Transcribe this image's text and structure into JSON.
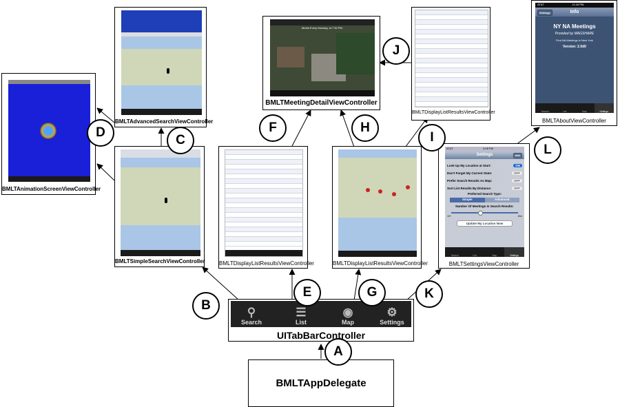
{
  "nodes": {
    "animation": "BMLTAnimationScreenViewController",
    "advanced_search": "BMLTAdvancedSearchViewController",
    "simple_search": "BMLTSimpleSearchViewController",
    "meeting_detail": "BMLTMeetingDetailViewController",
    "display_list_results_e": "BMLTDisplayListResultsViewController",
    "display_list_results_j": "BMLTDisplayListResultsViewController",
    "display_map_results": "BMLTDisplayListResultsViewController",
    "settings": "BMLTSettingsViewController",
    "about": "BMLTAboutViewController",
    "tab_bar": "UITabBarController",
    "app_delegate": "BMLTAppDelegate"
  },
  "labels": {
    "A": "A",
    "B": "B",
    "C": "C",
    "D": "D",
    "E": "E",
    "F": "F",
    "G": "G",
    "H": "H",
    "I": "I",
    "J": "J",
    "K": "K",
    "L": "L"
  },
  "tab_bar": {
    "tabs": [
      {
        "label": "Search",
        "icon": "search-icon"
      },
      {
        "label": "List",
        "icon": "list-icon"
      },
      {
        "label": "Map",
        "icon": "globe-icon"
      },
      {
        "label": "Settings",
        "icon": "gear-icon"
      }
    ]
  },
  "about_screen": {
    "status_carrier": "AT&T",
    "status_time": "11:18 PM",
    "nav_button": "Settings",
    "nav_title": "Info",
    "heading": "NY NA Meetings",
    "provided_by": "Provided by MAGSHARE",
    "tagline": "Find NA Meetings in New York",
    "version": "Version: 2.0d0",
    "tabs": [
      "Search",
      "List",
      "Map",
      "Settings"
    ]
  },
  "settings_screen": {
    "status_carrier": "AT&T",
    "status_time": "3:08 PM",
    "nav_title": "Settings",
    "nav_button": "Info",
    "options": [
      {
        "label": "Look Up My Location at Start:",
        "state": "ON"
      },
      {
        "label": "Don't Forget My Current State:",
        "state": "OFF"
      },
      {
        "label": "Prefer Search Results As Map:",
        "state": "OFF"
      },
      {
        "label": "Sort List Results By Distance:",
        "state": "OFF"
      }
    ],
    "preferred_search_type": "Preferred Search Type:",
    "segments": [
      "Simple",
      "Advanced"
    ],
    "meetings_label": "Number Of Meetings In Search Results:",
    "slider_min": "10+",
    "slider_max": "10m",
    "update_button": "Update My Location Now",
    "tabs": [
      "Search",
      "List",
      "Map",
      "Settings"
    ]
  },
  "detail_screen": {
    "caption": "Meets Every Monday, at 7:30 PM."
  },
  "colors": {
    "ios_nav_blue": "#6d84a2",
    "animation_blue": "#1a1fd8",
    "map_land": "#cfd7b8",
    "map_water": "#a9c6e6",
    "tabbar_dark": "#222222"
  }
}
